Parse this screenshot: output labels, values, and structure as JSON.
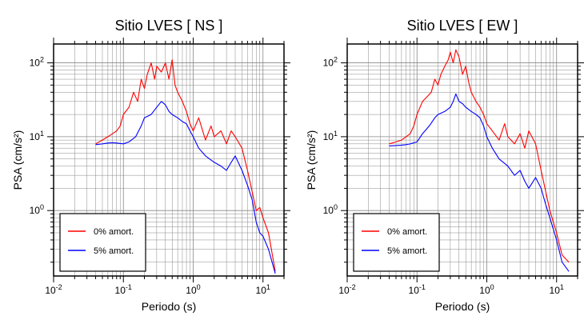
{
  "chart_data": [
    {
      "type": "line",
      "title": "Sitio LVES [ NS ]",
      "xlabel": "Periodo (s)",
      "ylabel": "PSA (cm/s²)",
      "xscale": "log",
      "yscale": "log",
      "xlim": [
        0.01,
        20
      ],
      "ylim": [
        0.13,
        180
      ],
      "x_tick_labels": [
        "10⁻²",
        "10⁻¹",
        "10⁰",
        "10¹"
      ],
      "y_tick_labels": [
        "10⁰",
        "10¹",
        "10²"
      ],
      "grid": true,
      "legend_position": "bottom-left",
      "series": [
        {
          "name": "0% amort.",
          "color": "#ff0000",
          "x": [
            0.04,
            0.05,
            0.06,
            0.07,
            0.08,
            0.09,
            0.1,
            0.12,
            0.14,
            0.16,
            0.18,
            0.2,
            0.22,
            0.25,
            0.28,
            0.3,
            0.35,
            0.4,
            0.45,
            0.5,
            0.55,
            0.6,
            0.7,
            0.8,
            0.9,
            1.0,
            1.2,
            1.5,
            1.8,
            2.0,
            2.5,
            3.0,
            3.5,
            4.0,
            5.0,
            6.0,
            7.0,
            8.0,
            9.0,
            10.0,
            12.0,
            15.0
          ],
          "y": [
            8,
            9,
            10,
            11,
            12,
            14,
            20,
            25,
            40,
            30,
            60,
            45,
            70,
            100,
            60,
            90,
            75,
            100,
            60,
            110,
            50,
            40,
            30,
            22,
            15,
            12,
            18,
            9,
            14,
            10,
            12,
            8,
            12,
            10,
            7,
            3.5,
            1.8,
            1.0,
            1.1,
            0.8,
            0.5,
            0.15
          ]
        },
        {
          "name": "5% amort.",
          "color": "#0000ff",
          "x": [
            0.04,
            0.05,
            0.06,
            0.07,
            0.08,
            0.1,
            0.12,
            0.15,
            0.18,
            0.2,
            0.25,
            0.3,
            0.35,
            0.4,
            0.45,
            0.5,
            0.6,
            0.7,
            0.8,
            0.9,
            1.0,
            1.2,
            1.5,
            2.0,
            2.5,
            3.0,
            3.5,
            4.0,
            5.0,
            6.0,
            7.0,
            8.0,
            9.0,
            10.0,
            12.0,
            15.0
          ],
          "y": [
            7.8,
            8.0,
            8.2,
            8.3,
            8.2,
            8.0,
            8.5,
            10,
            14,
            18,
            20,
            25,
            30,
            27,
            22,
            20,
            18,
            16,
            15,
            12,
            10,
            7,
            5.5,
            4.5,
            4,
            3.5,
            4.5,
            5.5,
            3.5,
            2.2,
            1.4,
            0.7,
            0.5,
            0.45,
            0.3,
            0.14
          ]
        }
      ]
    },
    {
      "type": "line",
      "title": "Sitio LVES [ EW ]",
      "xlabel": "Periodo (s)",
      "ylabel": "PSA (cm/s²)",
      "xscale": "log",
      "yscale": "log",
      "xlim": [
        0.01,
        20
      ],
      "ylim": [
        0.13,
        180
      ],
      "x_tick_labels": [
        "10⁻²",
        "10⁻¹",
        "10⁰",
        "10¹"
      ],
      "y_tick_labels": [
        "10⁰",
        "10¹",
        "10²"
      ],
      "grid": true,
      "legend_position": "bottom-left",
      "series": [
        {
          "name": "0% amort.",
          "color": "#ff0000",
          "x": [
            0.04,
            0.05,
            0.06,
            0.07,
            0.08,
            0.09,
            0.1,
            0.12,
            0.14,
            0.16,
            0.18,
            0.2,
            0.22,
            0.25,
            0.28,
            0.3,
            0.33,
            0.36,
            0.4,
            0.45,
            0.5,
            0.55,
            0.6,
            0.7,
            0.8,
            0.9,
            1.0,
            1.2,
            1.5,
            1.8,
            2.0,
            2.5,
            3.0,
            3.5,
            4.0,
            5.0,
            6.0,
            7.0,
            8.0,
            10.0,
            12.0,
            15.0
          ],
          "y": [
            8,
            8.5,
            9,
            10,
            11,
            14,
            20,
            30,
            35,
            40,
            60,
            50,
            70,
            90,
            110,
            140,
            100,
            150,
            120,
            70,
            90,
            55,
            40,
            30,
            25,
            20,
            15,
            12,
            9,
            15,
            10,
            8,
            11,
            7,
            12,
            8,
            3.5,
            1.8,
            1.0,
            0.5,
            0.25,
            0.2
          ]
        },
        {
          "name": "5% amort.",
          "color": "#0000ff",
          "x": [
            0.04,
            0.05,
            0.06,
            0.07,
            0.08,
            0.1,
            0.12,
            0.15,
            0.18,
            0.2,
            0.25,
            0.3,
            0.33,
            0.36,
            0.4,
            0.45,
            0.5,
            0.6,
            0.7,
            0.8,
            0.9,
            1.0,
            1.2,
            1.5,
            2.0,
            2.5,
            3.0,
            3.5,
            4.0,
            5.0,
            6.0,
            7.0,
            8.0,
            10.0,
            12.0,
            15.0
          ],
          "y": [
            7.5,
            7.6,
            7.7,
            7.8,
            8.0,
            8.5,
            11,
            14,
            18,
            20,
            22,
            25,
            30,
            38,
            30,
            28,
            25,
            22,
            20,
            18,
            14,
            10,
            7,
            5,
            4,
            3,
            3.5,
            2.5,
            2.0,
            2.8,
            2.0,
            1.2,
            0.8,
            0.4,
            0.2,
            0.15
          ]
        }
      ]
    }
  ]
}
